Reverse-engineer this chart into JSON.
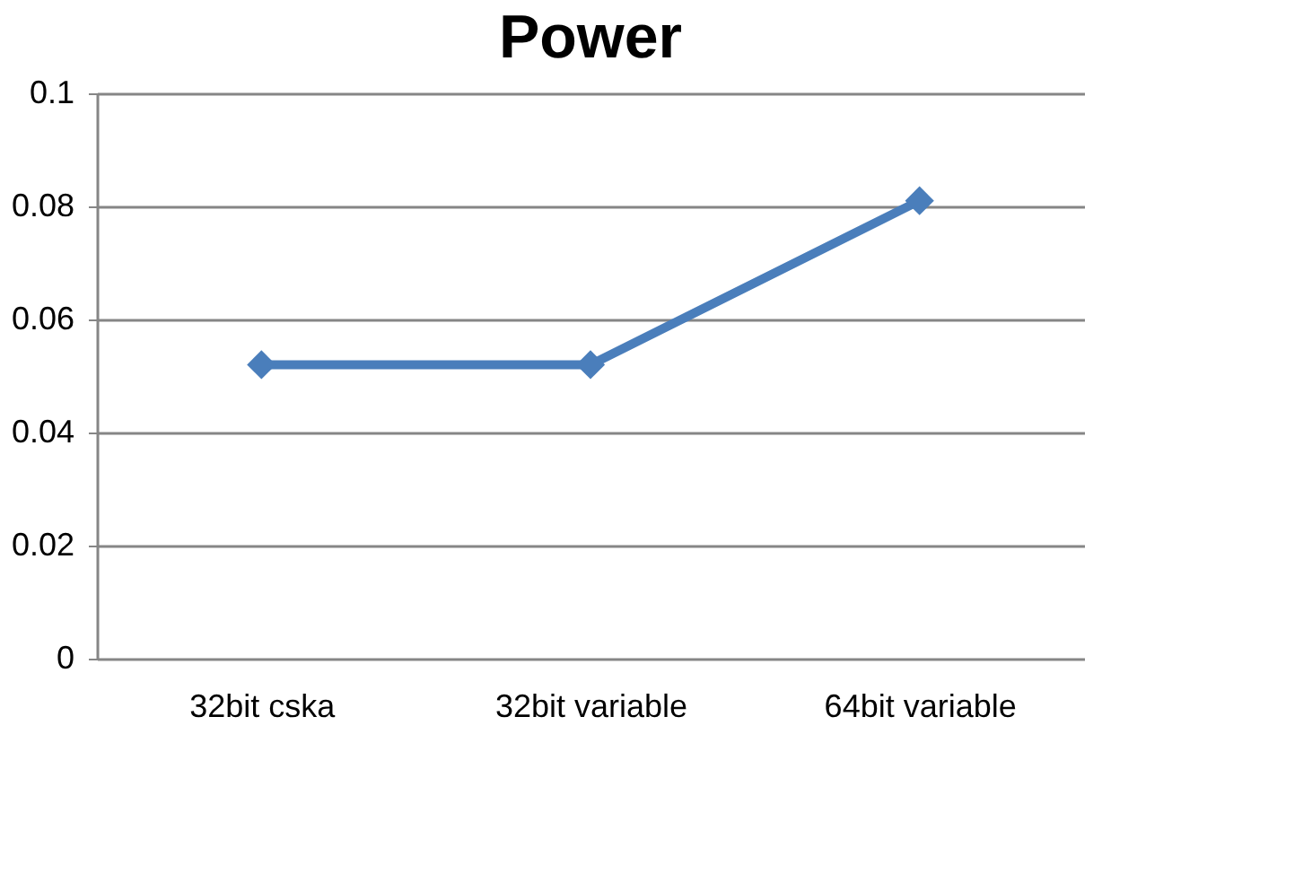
{
  "chart_data": {
    "type": "line",
    "title": "Power",
    "categories": [
      "32bit cska",
      "32bit variable",
      "64bit variable"
    ],
    "series": [
      {
        "color": "#4a7ebb",
        "values": [
          0.052,
          0.052,
          0.081
        ]
      }
    ],
    "ylim": [
      0,
      0.1
    ],
    "yticks": [
      0,
      0.02,
      0.04,
      0.06,
      0.08,
      0.1
    ],
    "grid": "y",
    "marker": "diamond",
    "line_style": "solid"
  }
}
